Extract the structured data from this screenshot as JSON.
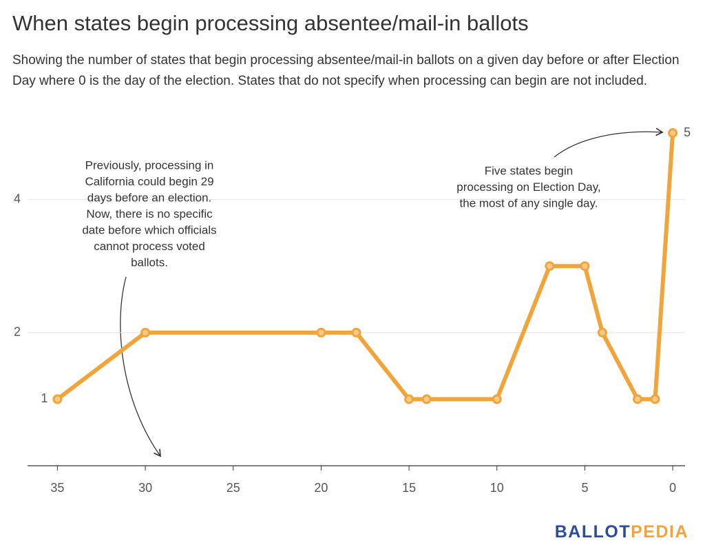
{
  "chart_data": {
    "type": "line",
    "title": "When states begin processing absentee/mail-in ballots",
    "subtitle": "Showing the number of states that begin processing absentee/mail-in ballots on a given day before or after Election Day where 0 is the day of the election. States that do not specify when processing can begin are not included.",
    "x": [
      35,
      30,
      20,
      18,
      15,
      14,
      10,
      7,
      5,
      4,
      2,
      1,
      0
    ],
    "values": [
      1,
      2,
      2,
      2,
      1,
      1,
      1,
      3,
      3,
      2,
      1,
      1,
      5
    ],
    "color": "#f0a43a",
    "xlim": [
      36.7,
      -0.7
    ],
    "xticks": [
      35,
      30,
      25,
      20,
      15,
      10,
      5,
      0
    ],
    "ylim": [
      0,
      5
    ],
    "yticks": [
      2,
      4
    ],
    "grid": true,
    "annotations": [
      [
        "Previously, processing in",
        "California could begin 29",
        "days before an election.",
        "Now, there is no specific",
        "date before which officials",
        "cannot process voted",
        "ballots."
      ],
      [
        "Five states begin",
        "processing on Election Day,",
        "the most of any single day."
      ]
    ],
    "logo": [
      "BALLOT",
      "PEDIA"
    ]
  }
}
